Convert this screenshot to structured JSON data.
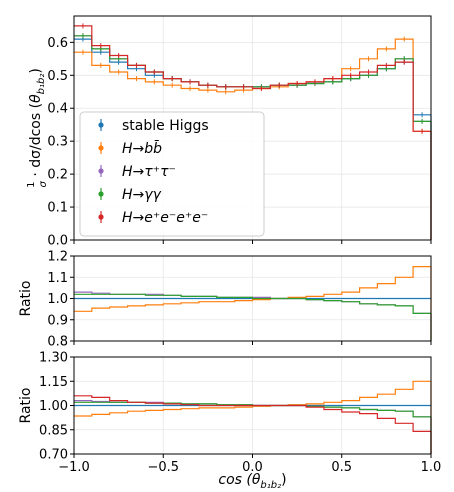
{
  "chart_data": [
    {
      "type": "line",
      "panel": "main",
      "title": "",
      "xlabel": "",
      "ylabel": "1/σ · dσ/dcos(θ_b1b2)",
      "ylabel_parts": {
        "frac_num": "1",
        "frac_den": "σ",
        "mid": " · dσ/dcos ",
        "theta": "θ",
        "sub": "b₁b₂"
      },
      "xlim": [
        -1.0,
        1.0
      ],
      "ylim": [
        0.0,
        0.68
      ],
      "yticks": [
        0.0,
        0.1,
        0.2,
        0.3,
        0.4,
        0.5,
        0.6
      ],
      "ytick_labels": [
        "0.0",
        "0.1",
        "0.2",
        "0.3",
        "0.4",
        "0.5",
        "0.6"
      ],
      "grid": true,
      "legend_position": "lower-left",
      "bin_edges": [
        -1.0,
        -0.9,
        -0.8,
        -0.7,
        -0.6,
        -0.5,
        -0.4,
        -0.3,
        -0.2,
        -0.1,
        0.0,
        0.1,
        0.2,
        0.3,
        0.4,
        0.5,
        0.6,
        0.7,
        0.8,
        0.9,
        1.0
      ],
      "series": [
        {
          "name": "stable Higgs",
          "color": "#1f77b4",
          "values": [
            0.61,
            0.57,
            0.54,
            0.52,
            0.5,
            0.49,
            0.48,
            0.47,
            0.465,
            0.465,
            0.465,
            0.47,
            0.47,
            0.475,
            0.48,
            0.49,
            0.5,
            0.52,
            0.54,
            0.38
          ]
        },
        {
          "name": "H→bb̄",
          "color": "#ff7f0e",
          "values": [
            0.57,
            0.53,
            0.51,
            0.49,
            0.48,
            0.47,
            0.46,
            0.455,
            0.45,
            0.455,
            0.46,
            0.465,
            0.475,
            0.48,
            0.49,
            0.52,
            0.55,
            0.58,
            0.61,
            0.33
          ]
        },
        {
          "name": "H→τ⁺τ⁻",
          "color": "#9467bd",
          "values": [
            0.62,
            0.58,
            0.55,
            0.53,
            0.51,
            0.49,
            0.48,
            0.47,
            0.465,
            0.465,
            0.465,
            0.47,
            0.47,
            0.475,
            0.48,
            0.49,
            0.5,
            0.52,
            0.55,
            0.36
          ]
        },
        {
          "name": "H→γγ",
          "color": "#2ca02c",
          "values": [
            0.62,
            0.58,
            0.55,
            0.53,
            0.51,
            0.49,
            0.48,
            0.47,
            0.465,
            0.465,
            0.465,
            0.47,
            0.47,
            0.475,
            0.48,
            0.49,
            0.5,
            0.52,
            0.55,
            0.36
          ]
        },
        {
          "name": "H→e⁺e⁻e⁺e⁻",
          "color": "#d62728",
          "values": [
            0.65,
            0.59,
            0.56,
            0.53,
            0.51,
            0.49,
            0.48,
            0.47,
            0.465,
            0.465,
            0.46,
            0.47,
            0.475,
            0.48,
            0.49,
            0.5,
            0.51,
            0.53,
            0.54,
            0.33
          ]
        }
      ],
      "legend_entries": [
        {
          "text": "stable Higgs",
          "color": "#1f77b4"
        },
        {
          "text": "H→bb̄",
          "color": "#ff7f0e"
        },
        {
          "text": "H→τ⁺τ⁻",
          "color": "#9467bd"
        },
        {
          "text": "H→γγ",
          "color": "#2ca02c"
        },
        {
          "text": "H→e⁺e⁻e⁺e⁻",
          "color": "#d62728"
        }
      ]
    },
    {
      "type": "line",
      "panel": "ratio1",
      "ylabel": "Ratio",
      "xlim": [
        -1.0,
        1.0
      ],
      "ylim": [
        0.8,
        1.2
      ],
      "yticks": [
        0.8,
        0.9,
        1.0,
        1.1,
        1.2
      ],
      "ytick_labels": [
        "0.8",
        "0.9",
        "1.0",
        "1.1",
        "1.2"
      ],
      "grid": true,
      "reference": 1.0,
      "series": [
        {
          "name": "H→bb̄",
          "color": "#ff7f0e",
          "values": [
            0.94,
            0.955,
            0.96,
            0.965,
            0.97,
            0.975,
            0.98,
            0.985,
            0.985,
            0.99,
            0.995,
            1.0,
            1.005,
            1.01,
            1.02,
            1.03,
            1.05,
            1.07,
            1.1,
            1.15
          ]
        },
        {
          "name": "H→τ⁺τ⁻",
          "color": "#9467bd",
          "values": [
            1.03,
            1.025,
            1.02,
            1.02,
            1.02,
            1.015,
            1.01,
            1.01,
            1.005,
            1.005,
            1.005,
            1.0,
            1.0,
            0.995,
            0.99,
            0.985,
            0.975,
            0.97,
            0.965,
            0.93
          ]
        },
        {
          "name": "H→γγ",
          "color": "#2ca02c",
          "values": [
            1.02,
            1.02,
            1.02,
            1.02,
            1.015,
            1.015,
            1.01,
            1.01,
            1.005,
            1.005,
            1.0,
            1.0,
            1.0,
            0.995,
            0.99,
            0.985,
            0.975,
            0.97,
            0.965,
            0.93
          ]
        }
      ]
    },
    {
      "type": "line",
      "panel": "ratio2",
      "xlabel": "cos(θ_b1b2)",
      "xlabel_parts": {
        "pre": "cos",
        "theta": "θ",
        "sub": "b₁b₂"
      },
      "ylabel": "Ratio",
      "xlim": [
        -1.0,
        1.0
      ],
      "ylim": [
        0.7,
        1.3
      ],
      "xticks": [
        -1.0,
        -0.5,
        0.0,
        0.5,
        1.0
      ],
      "xtick_labels": [
        "−1.0",
        "−0.5",
        "0.0",
        "0.5",
        "1.0"
      ],
      "yticks": [
        0.7,
        0.85,
        1.0,
        1.15,
        1.3
      ],
      "ytick_labels": [
        "0.70",
        "0.85",
        "1.00",
        "1.15",
        "1.30"
      ],
      "grid": true,
      "reference": 1.0,
      "series": [
        {
          "name": "H→bb̄",
          "color": "#ff7f0e",
          "values": [
            0.935,
            0.945,
            0.955,
            0.965,
            0.97,
            0.975,
            0.98,
            0.985,
            0.985,
            0.99,
            0.995,
            1.0,
            1.005,
            1.01,
            1.02,
            1.03,
            1.05,
            1.07,
            1.1,
            1.15
          ]
        },
        {
          "name": "H→τ⁺τ⁻",
          "color": "#9467bd",
          "values": [
            1.03,
            1.025,
            1.02,
            1.02,
            1.02,
            1.015,
            1.01,
            1.01,
            1.005,
            1.005,
            1.0,
            1.0,
            1.0,
            0.995,
            0.99,
            0.985,
            0.975,
            0.97,
            0.965,
            0.93
          ]
        },
        {
          "name": "H→γγ",
          "color": "#2ca02c",
          "values": [
            1.02,
            1.02,
            1.02,
            1.02,
            1.015,
            1.015,
            1.01,
            1.01,
            1.005,
            1.005,
            1.0,
            1.0,
            1.0,
            0.995,
            0.99,
            0.985,
            0.975,
            0.97,
            0.965,
            0.93
          ]
        },
        {
          "name": "H→e⁺e⁻e⁺e⁻",
          "color": "#d62728",
          "values": [
            1.06,
            1.05,
            1.03,
            1.02,
            1.015,
            1.01,
            1.005,
            1.0,
            1.0,
            1.0,
            1.0,
            1.0,
            1.0,
            0.99,
            0.975,
            0.96,
            0.95,
            0.92,
            0.89,
            0.84
          ]
        }
      ]
    }
  ]
}
